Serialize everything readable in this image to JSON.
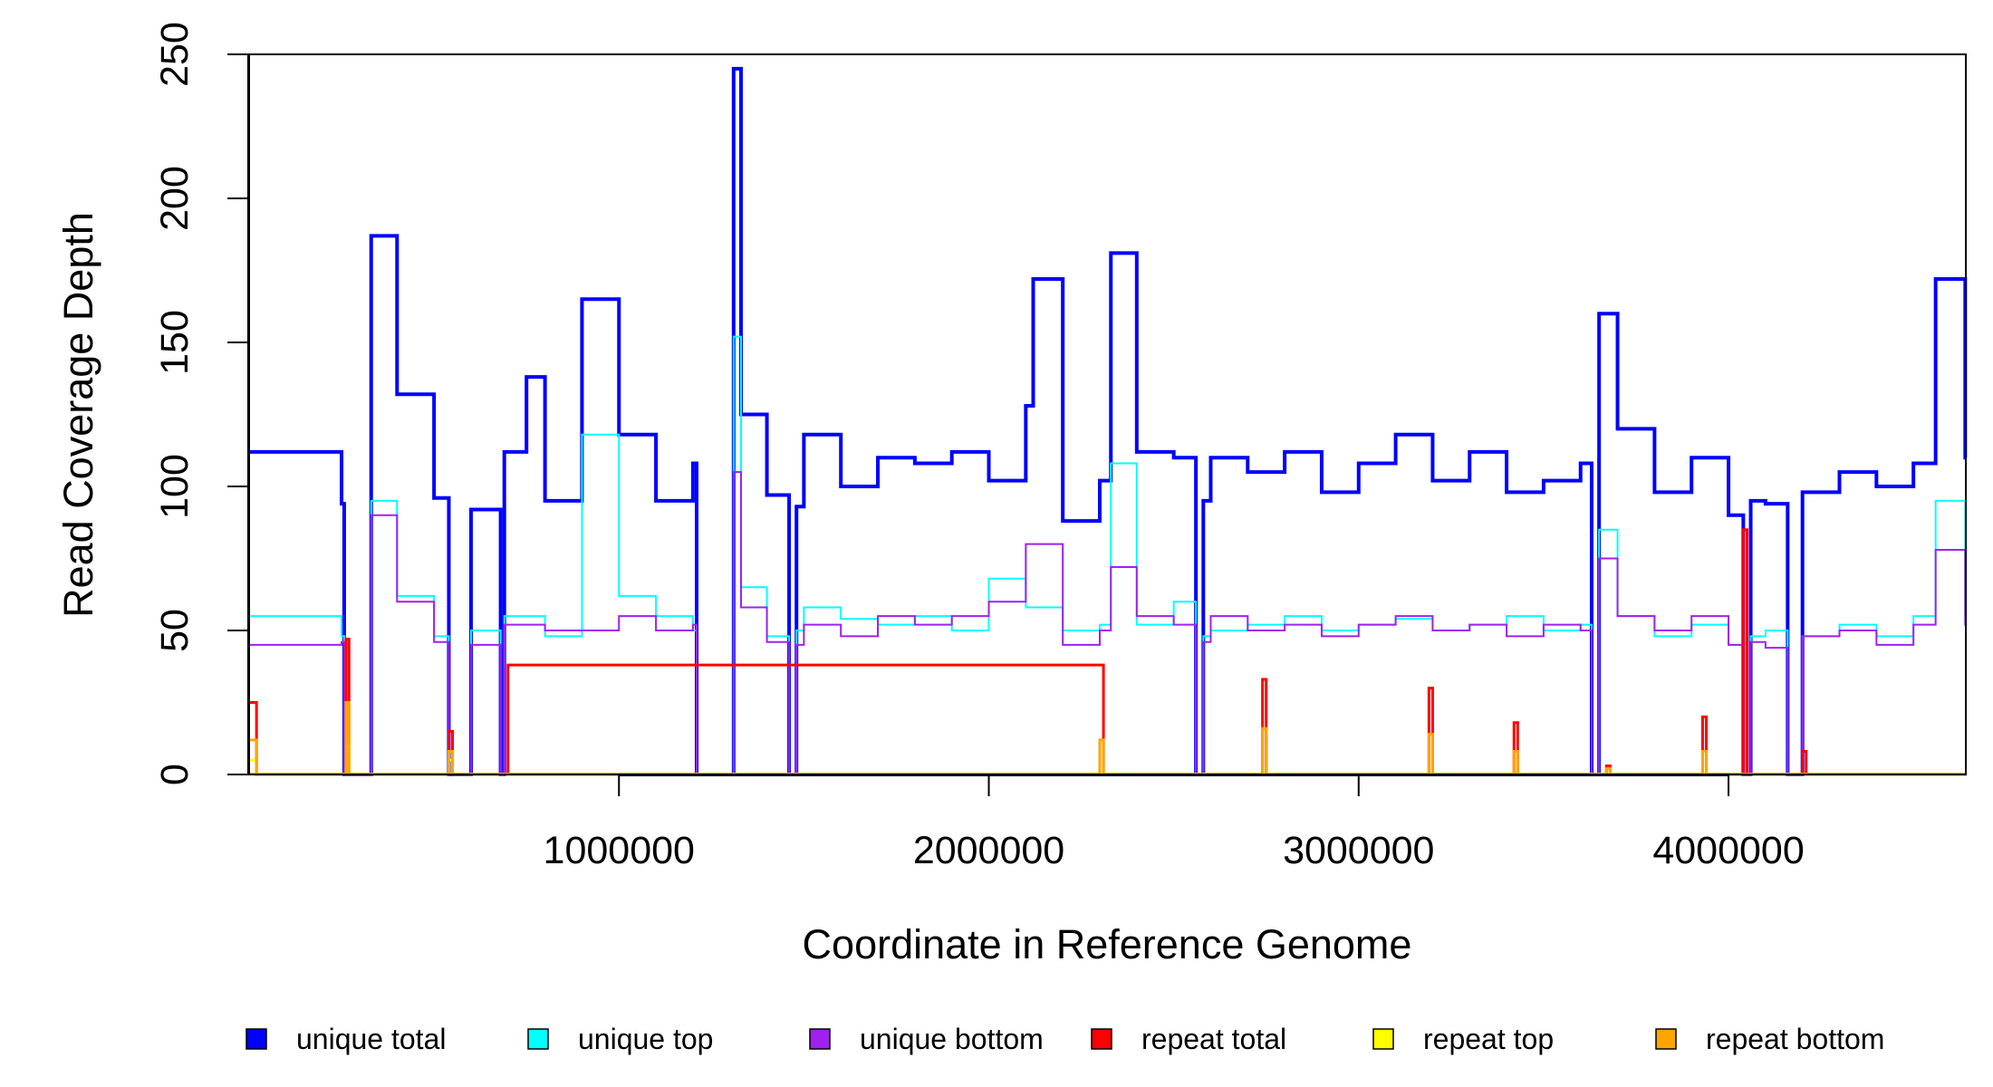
{
  "chart_data": {
    "type": "line",
    "xlabel": "Coordinate in Reference Genome",
    "ylabel": "Read Coverage Depth",
    "xlim": [
      1,
      4641652
    ],
    "ylim": [
      0,
      250
    ],
    "x_ticks": [
      1000000,
      2000000,
      3000000,
      4000000
    ],
    "x_tick_labels": [
      "1000000",
      "2000000",
      "3000000",
      "4000000"
    ],
    "y_ticks": [
      0,
      50,
      100,
      150,
      200,
      250
    ],
    "y_tick_labels": [
      "0",
      "50",
      "100",
      "150",
      "200",
      "250"
    ],
    "grid": false,
    "legend_position": "bottom",
    "series": [
      {
        "name": "unique total",
        "color": "#0000FF",
        "x": [
          0,
          250000,
          257000,
          300000,
          330000,
          400000,
          500000,
          540000,
          600000,
          680000,
          690000,
          750000,
          800000,
          900000,
          1000000,
          1100000,
          1200000,
          1210000,
          1290000,
          1310000,
          1330000,
          1400000,
          1460000,
          1480000,
          1500000,
          1600000,
          1700000,
          1800000,
          1900000,
          2000000,
          2100000,
          2120000,
          2200000,
          2300000,
          2330000,
          2400000,
          2500000,
          2560000,
          2580000,
          2600000,
          2700000,
          2800000,
          2900000,
          3000000,
          3100000,
          3200000,
          3300000,
          3400000,
          3500000,
          3600000,
          3630000,
          3650000,
          3700000,
          3800000,
          3900000,
          4000000,
          4040000,
          4060000,
          4100000,
          4160000,
          4200000,
          4300000,
          4400000,
          4500000,
          4560000,
          4640000
        ],
        "y": [
          112,
          94,
          0,
          0,
          187,
          132,
          96,
          0,
          92,
          0,
          112,
          138,
          95,
          165,
          118,
          95,
          108,
          0,
          0,
          245,
          125,
          97,
          0,
          93,
          118,
          100,
          110,
          108,
          112,
          102,
          128,
          172,
          88,
          102,
          181,
          112,
          110,
          0,
          95,
          110,
          105,
          112,
          98,
          108,
          118,
          102,
          112,
          98,
          102,
          108,
          0,
          160,
          120,
          98,
          110,
          90,
          0,
          95,
          94,
          0,
          98,
          105,
          100,
          108,
          172,
          110
        ]
      },
      {
        "name": "unique top",
        "color": "#00FFFF",
        "x": [
          0,
          250000,
          257000,
          300000,
          330000,
          400000,
          500000,
          540000,
          600000,
          680000,
          690000,
          800000,
          900000,
          1000000,
          1100000,
          1200000,
          1210000,
          1290000,
          1310000,
          1330000,
          1400000,
          1460000,
          1480000,
          1500000,
          1600000,
          1700000,
          1800000,
          1900000,
          2000000,
          2100000,
          2200000,
          2300000,
          2330000,
          2400000,
          2500000,
          2560000,
          2580000,
          2600000,
          2700000,
          2800000,
          2900000,
          3000000,
          3100000,
          3200000,
          3300000,
          3400000,
          3500000,
          3600000,
          3630000,
          3650000,
          3700000,
          3800000,
          3900000,
          4000000,
          4040000,
          4060000,
          4100000,
          4160000,
          4200000,
          4300000,
          4400000,
          4500000,
          4560000,
          4640000
        ],
        "y": [
          55,
          48,
          0,
          0,
          95,
          62,
          48,
          0,
          50,
          0,
          55,
          48,
          118,
          62,
          55,
          50,
          0,
          0,
          152,
          65,
          48,
          0,
          50,
          58,
          54,
          52,
          55,
          50,
          68,
          58,
          50,
          52,
          108,
          52,
          60,
          0,
          48,
          50,
          52,
          55,
          50,
          52,
          54,
          50,
          52,
          55,
          50,
          52,
          0,
          85,
          55,
          48,
          52,
          45,
          0,
          48,
          50,
          0,
          48,
          52,
          48,
          55,
          95,
          55
        ]
      },
      {
        "name": "unique bottom",
        "color": "#A020F0",
        "x": [
          0,
          250000,
          257000,
          300000,
          330000,
          400000,
          500000,
          540000,
          600000,
          680000,
          690000,
          800000,
          900000,
          1000000,
          1100000,
          1200000,
          1210000,
          1290000,
          1310000,
          1330000,
          1400000,
          1460000,
          1480000,
          1500000,
          1600000,
          1700000,
          1800000,
          1900000,
          2000000,
          2100000,
          2200000,
          2300000,
          2330000,
          2400000,
          2500000,
          2560000,
          2580000,
          2600000,
          2700000,
          2800000,
          2900000,
          3000000,
          3100000,
          3200000,
          3300000,
          3400000,
          3500000,
          3600000,
          3630000,
          3650000,
          3700000,
          3800000,
          3900000,
          4000000,
          4040000,
          4060000,
          4100000,
          4160000,
          4200000,
          4300000,
          4400000,
          4500000,
          4560000,
          4640000
        ],
        "y": [
          45,
          46,
          0,
          0,
          90,
          60,
          46,
          0,
          45,
          0,
          52,
          50,
          50,
          55,
          50,
          52,
          0,
          0,
          105,
          58,
          46,
          0,
          45,
          52,
          48,
          55,
          52,
          55,
          60,
          80,
          45,
          50,
          72,
          55,
          52,
          0,
          46,
          55,
          50,
          52,
          48,
          52,
          55,
          50,
          52,
          48,
          52,
          50,
          0,
          75,
          55,
          50,
          55,
          45,
          0,
          46,
          44,
          0,
          48,
          50,
          45,
          52,
          78,
          52
        ]
      },
      {
        "name": "repeat total",
        "color": "#FF0000",
        "x": [
          0,
          10000,
          20000,
          255000,
          262000,
          270000,
          540000,
          550000,
          700000,
          2300000,
          2310000,
          2740000,
          2750000,
          3190000,
          3200000,
          3420000,
          3430000,
          3670000,
          3680000,
          3930000,
          3940000,
          4040000,
          4050000,
          4200000,
          4210000
        ],
        "y": [
          25,
          25,
          0,
          0,
          47,
          0,
          15,
          0,
          38,
          38,
          0,
          33,
          0,
          30,
          0,
          18,
          0,
          3,
          0,
          20,
          0,
          85,
          0,
          8,
          0
        ]
      },
      {
        "name": "repeat top",
        "color": "#FFFF00",
        "x": [
          0,
          10000,
          20000,
          262000,
          270000,
          540000,
          550000
        ],
        "y": [
          5,
          5,
          0,
          10,
          0,
          5,
          0
        ]
      },
      {
        "name": "repeat bottom",
        "color": "#FFA500",
        "x": [
          0,
          10000,
          20000,
          262000,
          270000,
          540000,
          550000,
          2300000,
          2310000,
          2740000,
          2750000,
          3190000,
          3200000,
          3420000,
          3430000,
          3670000,
          3680000,
          3930000,
          3940000
        ],
        "y": [
          12,
          12,
          0,
          25,
          0,
          8,
          0,
          12,
          0,
          16,
          0,
          14,
          0,
          8,
          0,
          2,
          0,
          8,
          0
        ]
      }
    ]
  }
}
